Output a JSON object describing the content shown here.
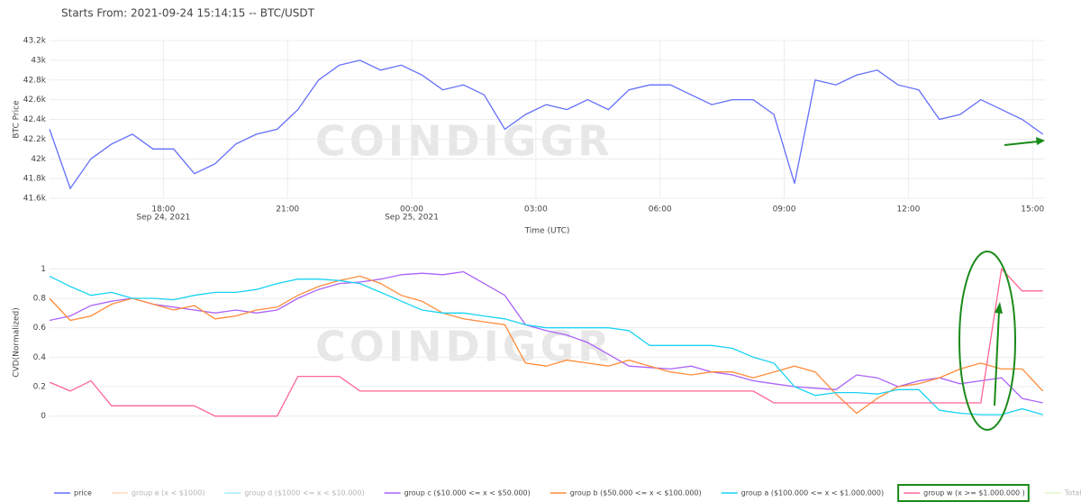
{
  "title": "Starts From: 2021-09-24 15:14:15 -- BTC/USDT",
  "watermark": "COINDIGGR",
  "legend": [
    {
      "name": "price",
      "color": "#636efa",
      "visible": true
    },
    {
      "name": "group e (x < $1000)",
      "color": "#ffa15a",
      "visible": false
    },
    {
      "name": "group d ($1000 <= x < $10.000)",
      "color": "#19d3f3",
      "visible": false
    },
    {
      "name": "group c ($10.000 <= x < $50.000)",
      "color": "#ab63fa",
      "visible": true
    },
    {
      "name": "group b ($50.000 <= x < $100.000)",
      "color": "#ff8c3a",
      "visible": true
    },
    {
      "name": "group a ($100.000 <= x < $1.000.000)",
      "color": "#19d3f3",
      "visible": true
    },
    {
      "name": "group w (x >= $1.000.000 )",
      "color": "#ff6692",
      "visible": true
    },
    {
      "name": "Total",
      "color": "#b6e880",
      "visible": false
    }
  ],
  "chart_data": [
    {
      "type": "line",
      "ylabel": "BTC Price",
      "xlabel": "Time (UTC)",
      "grid": true,
      "xlim": [
        15.25,
        39.3
      ],
      "ylim": [
        41600,
        43200
      ],
      "xticks": [
        {
          "value": 18,
          "label": "18:00",
          "date": "Sep 24, 2021"
        },
        {
          "value": 21,
          "label": "21:00"
        },
        {
          "value": 24,
          "label": "00:00",
          "date": "Sep 25, 2021"
        },
        {
          "value": 27,
          "label": "03:00"
        },
        {
          "value": 30,
          "label": "06:00"
        },
        {
          "value": 33,
          "label": "09:00"
        },
        {
          "value": 36,
          "label": "12:00"
        },
        {
          "value": 39,
          "label": "15:00"
        }
      ],
      "yticks": [
        {
          "value": 41600,
          "label": "41.6k"
        },
        {
          "value": 41800,
          "label": "41.8k"
        },
        {
          "value": 42000,
          "label": "42k"
        },
        {
          "value": 42200,
          "label": "42.2k"
        },
        {
          "value": 42400,
          "label": "42.4k"
        },
        {
          "value": 42600,
          "label": "42.6k"
        },
        {
          "value": 42800,
          "label": "42.8k"
        },
        {
          "value": 43000,
          "label": "43k"
        },
        {
          "value": 43200,
          "label": "43.2k"
        }
      ],
      "x": [
        15.25,
        15.75,
        16.25,
        16.75,
        17.25,
        17.75,
        18.25,
        18.75,
        19.25,
        19.75,
        20.25,
        20.75,
        21.25,
        21.75,
        22.25,
        22.75,
        23.25,
        23.75,
        24.25,
        24.75,
        25.25,
        25.75,
        26.25,
        26.75,
        27.25,
        27.75,
        28.25,
        28.75,
        29.25,
        29.75,
        30.25,
        30.75,
        31.25,
        31.75,
        32.25,
        32.75,
        33.25,
        33.75,
        34.25,
        34.75,
        35.25,
        35.75,
        36.25,
        36.75,
        37.25,
        37.75,
        38.25,
        38.75,
        39.25
      ],
      "series": [
        {
          "color": "#636efa",
          "values": [
            42300,
            41700,
            42000,
            42150,
            42250,
            42100,
            42100,
            41850,
            41950,
            42150,
            42250,
            42300,
            42500,
            42800,
            42950,
            43000,
            42900,
            42950,
            42850,
            42700,
            42750,
            42650,
            42300,
            42450,
            42550,
            42500,
            42600,
            42500,
            42700,
            42750,
            42750,
            42650,
            42550,
            42600,
            42600,
            42450,
            41750,
            42800,
            42750,
            42850,
            42900,
            42750,
            42700,
            42400,
            42450,
            42600,
            42500,
            42400,
            42250
          ]
        }
      ]
    },
    {
      "type": "line",
      "ylabel": "CVD(Normalized)",
      "grid": true,
      "xlim": [
        15.25,
        39.3
      ],
      "ylim": [
        -0.02,
        1.02
      ],
      "yticks": [
        0,
        0.2,
        0.4,
        0.6,
        0.8,
        1
      ],
      "x": [
        15.25,
        15.75,
        16.25,
        16.75,
        17.25,
        17.75,
        18.25,
        18.75,
        19.25,
        19.75,
        20.25,
        20.75,
        21.25,
        21.75,
        22.25,
        22.75,
        23.25,
        23.75,
        24.25,
        24.75,
        25.25,
        25.75,
        26.25,
        26.75,
        27.25,
        27.75,
        28.25,
        28.75,
        29.25,
        29.75,
        30.25,
        30.75,
        31.25,
        31.75,
        32.25,
        32.75,
        33.25,
        33.75,
        34.25,
        34.75,
        35.25,
        35.75,
        36.25,
        36.75,
        37.25,
        37.75,
        38.25,
        38.75,
        39.25
      ],
      "series": [
        {
          "color": "#ab63fa",
          "values": [
            0.65,
            0.68,
            0.75,
            0.78,
            0.8,
            0.76,
            0.74,
            0.72,
            0.7,
            0.72,
            0.7,
            0.72,
            0.8,
            0.86,
            0.9,
            0.91,
            0.93,
            0.96,
            0.97,
            0.96,
            0.98,
            0.9,
            0.82,
            0.62,
            0.58,
            0.55,
            0.5,
            0.42,
            0.34,
            0.33,
            0.32,
            0.34,
            0.3,
            0.28,
            0.24,
            0.22,
            0.2,
            0.19,
            0.18,
            0.28,
            0.26,
            0.2,
            0.24,
            0.26,
            0.22,
            0.24,
            0.26,
            0.12,
            0.09
          ]
        },
        {
          "color": "#ff8c3a",
          "values": [
            0.8,
            0.65,
            0.68,
            0.76,
            0.8,
            0.76,
            0.72,
            0.75,
            0.66,
            0.68,
            0.72,
            0.74,
            0.82,
            0.88,
            0.92,
            0.95,
            0.9,
            0.82,
            0.78,
            0.7,
            0.66,
            0.64,
            0.62,
            0.36,
            0.34,
            0.38,
            0.36,
            0.34,
            0.38,
            0.34,
            0.3,
            0.28,
            0.3,
            0.3,
            0.26,
            0.3,
            0.34,
            0.3,
            0.15,
            0.02,
            0.12,
            0.2,
            0.22,
            0.26,
            0.32,
            0.36,
            0.32,
            0.32,
            0.17
          ]
        },
        {
          "color": "#19d3f3",
          "values": [
            0.95,
            0.88,
            0.82,
            0.84,
            0.8,
            0.8,
            0.79,
            0.82,
            0.84,
            0.84,
            0.86,
            0.9,
            0.93,
            0.93,
            0.92,
            0.9,
            0.84,
            0.78,
            0.72,
            0.7,
            0.7,
            0.68,
            0.66,
            0.62,
            0.6,
            0.6,
            0.6,
            0.6,
            0.58,
            0.48,
            0.48,
            0.48,
            0.48,
            0.46,
            0.4,
            0.36,
            0.2,
            0.14,
            0.16,
            0.16,
            0.15,
            0.18,
            0.18,
            0.04,
            0.02,
            0.01,
            0.01,
            0.05,
            0.01
          ]
        },
        {
          "color": "#ff6692",
          "values": [
            0.23,
            0.17,
            0.24,
            0.07,
            0.07,
            0.07,
            0.07,
            0.07,
            0,
            0,
            0,
            0,
            0.27,
            0.27,
            0.27,
            0.17,
            0.17,
            0.17,
            0.17,
            0.17,
            0.17,
            0.17,
            0.17,
            0.17,
            0.17,
            0.17,
            0.17,
            0.17,
            0.17,
            0.17,
            0.17,
            0.17,
            0.17,
            0.17,
            0.17,
            0.09,
            0.09,
            0.09,
            0.09,
            0.09,
            0.09,
            0.09,
            0.09,
            0.09,
            0.09,
            0.09,
            1,
            0.85,
            0.85
          ]
        }
      ]
    }
  ]
}
